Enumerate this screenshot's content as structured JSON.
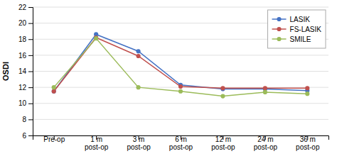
{
  "chart_data": {
    "type": "line",
    "categories": [
      "Pre-op",
      "1 m\npost-op",
      "3 m\npost-op",
      "6 m\npost-op",
      "12 m\npost-op",
      "24 m\npost-op",
      "36 m\npost-op"
    ],
    "series": [
      {
        "name": "LASIK",
        "color": "#4472C4",
        "marker": "circle",
        "values": [
          11.5,
          18.6,
          16.5,
          12.3,
          11.8,
          11.8,
          11.6
        ]
      },
      {
        "name": "FS-LASIK",
        "color": "#C0504D",
        "marker": "circle",
        "values": [
          11.5,
          18.2,
          15.9,
          12.1,
          11.9,
          11.9,
          11.9
        ]
      },
      {
        "name": "SMILE",
        "color": "#9BBB59",
        "marker": "circle",
        "values": [
          12.0,
          18.1,
          12.0,
          11.5,
          10.9,
          11.4,
          11.2
        ]
      }
    ],
    "ylabel": "OSDI",
    "ylim": [
      6,
      22
    ],
    "yticks": [
      6,
      8,
      10,
      12,
      14,
      16,
      18,
      20,
      22
    ],
    "grid": true,
    "legend": "upper right"
  }
}
